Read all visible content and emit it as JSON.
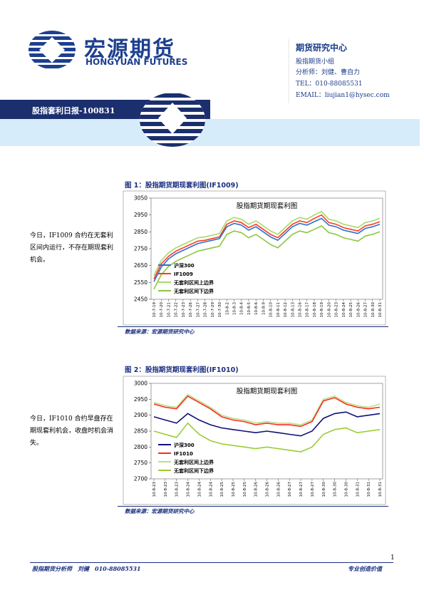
{
  "header": {
    "company_cn": "宏源期货",
    "company_en": "HONGYUAN FUTURES",
    "dept": "期货研究中心",
    "team": "股指期货小组",
    "analyst": "分析师：刘健、曹自力",
    "tel": "TEL：010-88085531",
    "email": "EMAIL：liujian1@hysec.com"
  },
  "report_title": "股指套利日报-100831",
  "sections": [
    {
      "caption": "图 1：股指期货期现套利图(IF1009)",
      "comment": "今日，IF1009 合约在无套利区间内运行，不存在期现套利机会。",
      "source": "数据来源：宏源期货研究中心"
    },
    {
      "caption": "图 2：股指期货期现套利图(IF1010)",
      "comment": "今日，IF1010 合约早盘存在期现套利机会，收盘时机会消失。",
      "source": "数据来源：宏源期货研究中心"
    }
  ],
  "footer": {
    "left": "股指期货分析师　刘健　010-88085531",
    "right": "专业创造价值",
    "page": "1"
  },
  "chart_data": [
    {
      "type": "line",
      "title": "股指期货期现套利图",
      "categories": [
        "10-7-19",
        "10-7-20",
        "10-7-21",
        "10-7-22",
        "10-7-23",
        "10-7-26",
        "10-7-27",
        "10-7-28",
        "10-7-29",
        "10-7-30",
        "10-8-2",
        "10-8-3",
        "10-8-4",
        "10-8-5",
        "10-8-6",
        "10-8-9",
        "10-8-10",
        "10-8-11",
        "10-8-12",
        "10-8-13",
        "10-8-16",
        "10-8-17",
        "10-8-18",
        "10-8-19",
        "10-8-20",
        "10-8-23",
        "10-8-24",
        "10-8-25",
        "10-8-26",
        "10-8-27",
        "10-8-30",
        "10-8-31"
      ],
      "ylim": [
        2450,
        3050
      ],
      "yticks": [
        2450,
        2550,
        2650,
        2750,
        2850,
        2950,
        3050
      ],
      "series": [
        {
          "name": "沪深300",
          "color": "#2e6fd0",
          "values": [
            2555,
            2640,
            2690,
            2720,
            2740,
            2760,
            2780,
            2790,
            2800,
            2810,
            2880,
            2900,
            2890,
            2860,
            2880,
            2850,
            2820,
            2800,
            2840,
            2880,
            2900,
            2890,
            2910,
            2930,
            2890,
            2880,
            2860,
            2850,
            2840,
            2870,
            2880,
            2895
          ]
        },
        {
          "name": "IF1009",
          "color": "#ff3b1f",
          "values": [
            2570,
            2660,
            2705,
            2735,
            2755,
            2775,
            2795,
            2800,
            2810,
            2820,
            2895,
            2915,
            2905,
            2875,
            2895,
            2865,
            2835,
            2815,
            2855,
            2895,
            2915,
            2905,
            2930,
            2950,
            2905,
            2895,
            2875,
            2865,
            2855,
            2885,
            2895,
            2910
          ]
        },
        {
          "name": "无套利区间上边界",
          "color": "#a8d86a",
          "values": [
            2590,
            2680,
            2725,
            2755,
            2775,
            2795,
            2815,
            2820,
            2830,
            2840,
            2915,
            2935,
            2925,
            2895,
            2915,
            2885,
            2855,
            2835,
            2875,
            2915,
            2935,
            2925,
            2950,
            2970,
            2925,
            2915,
            2895,
            2885,
            2875,
            2905,
            2915,
            2930
          ]
        },
        {
          "name": "无套利区间下边界",
          "color": "#8cc63f",
          "values": [
            2510,
            2595,
            2645,
            2675,
            2695,
            2715,
            2735,
            2745,
            2755,
            2765,
            2835,
            2855,
            2845,
            2815,
            2835,
            2805,
            2775,
            2755,
            2795,
            2835,
            2855,
            2845,
            2865,
            2885,
            2845,
            2835,
            2815,
            2805,
            2795,
            2825,
            2835,
            2850
          ]
        }
      ]
    },
    {
      "type": "line",
      "title": "股指期货期现套利图",
      "categories": [
        "10-8-23",
        "10-8-23",
        "10-8-23",
        "10-8-24",
        "10-8-24",
        "10-8-24",
        "10-8-25",
        "10-8-25",
        "10-8-25",
        "10-8-26",
        "10-8-26",
        "10-8-26",
        "10-8-27",
        "10-8-27",
        "10-8-27",
        "10-8-30",
        "10-8-30",
        "10-8-30",
        "10-8-31",
        "10-8-31",
        "10-8-31"
      ],
      "ylim": [
        2700,
        3000
      ],
      "yticks": [
        2700,
        2750,
        2800,
        2850,
        2900,
        2950,
        3000
      ],
      "series": [
        {
          "name": "沪深300",
          "color": "#10107a",
          "values": [
            2895,
            2885,
            2875,
            2905,
            2885,
            2870,
            2860,
            2855,
            2850,
            2845,
            2850,
            2845,
            2840,
            2835,
            2850,
            2890,
            2905,
            2910,
            2895,
            2900,
            2905
          ]
        },
        {
          "name": "IF1010",
          "color": "#ff2a1a",
          "values": [
            2935,
            2925,
            2920,
            2960,
            2940,
            2920,
            2895,
            2885,
            2880,
            2870,
            2875,
            2870,
            2870,
            2865,
            2880,
            2945,
            2955,
            2935,
            2925,
            2920,
            2925
          ]
        },
        {
          "name": "无套利区间上边界",
          "color": "#b9e08a",
          "values": [
            2940,
            2930,
            2925,
            2965,
            2945,
            2925,
            2900,
            2890,
            2885,
            2875,
            2880,
            2875,
            2875,
            2870,
            2885,
            2950,
            2960,
            2940,
            2930,
            2925,
            2935
          ]
        },
        {
          "name": "无套利区间下边界",
          "color": "#9acd32",
          "values": [
            2850,
            2840,
            2830,
            2875,
            2840,
            2820,
            2810,
            2805,
            2800,
            2795,
            2800,
            2795,
            2790,
            2785,
            2800,
            2840,
            2855,
            2860,
            2845,
            2850,
            2855
          ]
        }
      ]
    }
  ]
}
